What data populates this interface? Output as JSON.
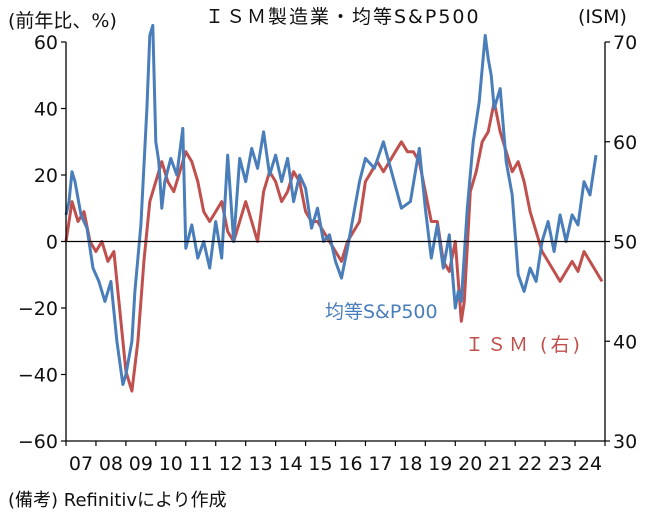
{
  "title": "ＩＳＭ製造業・均等S&P500",
  "left_axis_unit": "(前年比、%)",
  "right_axis_unit": "(ISM)",
  "source": "(備考) Refinitivにより作成",
  "series_labels": {
    "sp": "均等S&P500",
    "ism": "ＩＳＭ (右)"
  },
  "colors": {
    "sp": "#4A7EBB",
    "ism": "#C0504D",
    "axis": "#000000"
  },
  "chart_data": {
    "type": "line",
    "title": "ＩＳＭ製造業・均等S&P500",
    "x_ticks": [
      "07",
      "08",
      "09",
      "10",
      "11",
      "12",
      "13",
      "14",
      "15",
      "16",
      "17",
      "18",
      "19",
      "20",
      "21",
      "22",
      "23",
      "24"
    ],
    "x_range": [
      2007.0,
      2025.0
    ],
    "left_axis": {
      "ylim": [
        -60,
        60
      ],
      "ticks": [
        60,
        40,
        20,
        0,
        -20,
        -40,
        -60
      ],
      "label": "(前年比、%)"
    },
    "right_axis": {
      "ylim": [
        30,
        70
      ],
      "ticks": [
        70,
        60,
        50,
        40,
        30
      ],
      "label": "(ISM)"
    },
    "series": [
      {
        "name": "均等S&P500",
        "axis": "left",
        "x": [
          2007.0,
          2007.1,
          2007.2,
          2007.3,
          2007.5,
          2007.7,
          2007.9,
          2008.1,
          2008.3,
          2008.5,
          2008.7,
          2008.9,
          2009.0,
          2009.1,
          2009.2,
          2009.3,
          2009.5,
          2009.7,
          2009.8,
          2009.9,
          2010.0,
          2010.1,
          2010.2,
          2010.3,
          2010.5,
          2010.7,
          2010.9,
          2011.0,
          2011.2,
          2011.4,
          2011.6,
          2011.8,
          2012.0,
          2012.2,
          2012.4,
          2012.6,
          2012.8,
          2013.0,
          2013.2,
          2013.4,
          2013.6,
          2013.8,
          2014.0,
          2014.2,
          2014.4,
          2014.6,
          2014.8,
          2015.0,
          2015.2,
          2015.4,
          2015.6,
          2015.8,
          2016.0,
          2016.2,
          2016.4,
          2016.6,
          2016.8,
          2017.0,
          2017.3,
          2017.6,
          2017.9,
          2018.2,
          2018.5,
          2018.8,
          2019.0,
          2019.2,
          2019.4,
          2019.6,
          2019.8,
          2020.0,
          2020.1,
          2020.2,
          2020.4,
          2020.6,
          2020.8,
          2021.0,
          2021.1,
          2021.2,
          2021.3,
          2021.5,
          2021.7,
          2021.9,
          2022.1,
          2022.3,
          2022.5,
          2022.7,
          2022.9,
          2023.1,
          2023.3,
          2023.5,
          2023.7,
          2023.9,
          2024.1,
          2024.3,
          2024.5,
          2024.7
        ],
        "values": [
          8,
          12,
          21,
          18,
          8,
          4,
          -8,
          -12,
          -18,
          -12,
          -30,
          -43,
          -40,
          -35,
          -30,
          -15,
          5,
          40,
          62,
          65,
          30,
          24,
          10,
          18,
          25,
          20,
          34,
          -2,
          5,
          -5,
          0,
          -8,
          6,
          -5,
          26,
          0,
          25,
          18,
          28,
          22,
          33,
          20,
          26,
          18,
          25,
          12,
          20,
          16,
          4,
          10,
          0,
          2,
          -6,
          -11,
          -2,
          8,
          18,
          25,
          22,
          30,
          20,
          10,
          12,
          28,
          10,
          -5,
          5,
          -8,
          2,
          -20,
          -15,
          -18,
          10,
          30,
          42,
          62,
          55,
          50,
          40,
          46,
          24,
          14,
          -10,
          -15,
          -8,
          -12,
          0,
          6,
          -3,
          8,
          0,
          8,
          5,
          18,
          14,
          26
        ]
      },
      {
        "name": "ＩＳＭ (右)",
        "axis": "right",
        "x": [
          2007.0,
          2007.2,
          2007.4,
          2007.6,
          2007.8,
          2008.0,
          2008.2,
          2008.4,
          2008.6,
          2008.8,
          2009.0,
          2009.2,
          2009.4,
          2009.6,
          2009.8,
          2010.0,
          2010.2,
          2010.4,
          2010.6,
          2010.8,
          2011.0,
          2011.2,
          2011.4,
          2011.6,
          2011.8,
          2012.0,
          2012.2,
          2012.4,
          2012.6,
          2012.8,
          2013.0,
          2013.2,
          2013.4,
          2013.6,
          2013.8,
          2014.0,
          2014.2,
          2014.4,
          2014.6,
          2014.8,
          2015.0,
          2015.2,
          2015.4,
          2015.6,
          2015.8,
          2016.0,
          2016.2,
          2016.4,
          2016.6,
          2016.8,
          2017.0,
          2017.2,
          2017.4,
          2017.6,
          2017.8,
          2018.0,
          2018.2,
          2018.4,
          2018.6,
          2018.8,
          2019.0,
          2019.2,
          2019.4,
          2019.6,
          2019.8,
          2020.0,
          2020.2,
          2020.3,
          2020.5,
          2020.7,
          2020.9,
          2021.1,
          2021.3,
          2021.5,
          2021.7,
          2021.9,
          2022.1,
          2022.3,
          2022.5,
          2022.7,
          2022.9,
          2023.1,
          2023.3,
          2023.5,
          2023.7,
          2023.9,
          2024.1,
          2024.3,
          2024.5,
          2024.7,
          2024.9
        ],
        "values": [
          50,
          54,
          52,
          53,
          50,
          49,
          50,
          48,
          49,
          43,
          37,
          35,
          40,
          48,
          54,
          56,
          58,
          56,
          55,
          57,
          59,
          58,
          56,
          53,
          52,
          53,
          54,
          51,
          50,
          52,
          54,
          52,
          50,
          55,
          57,
          56,
          54,
          55,
          57,
          56,
          53,
          52,
          52,
          51,
          50,
          49,
          48,
          50,
          51,
          52,
          56,
          57,
          58,
          57,
          58,
          59,
          60,
          59,
          59,
          58,
          55,
          52,
          52,
          48,
          47,
          50,
          42,
          44,
          55,
          57,
          60,
          61,
          64,
          61,
          59,
          57,
          58,
          56,
          53,
          51,
          49,
          48,
          47,
          46,
          47,
          48,
          47,
          49,
          48,
          47,
          46
        ]
      }
    ]
  }
}
